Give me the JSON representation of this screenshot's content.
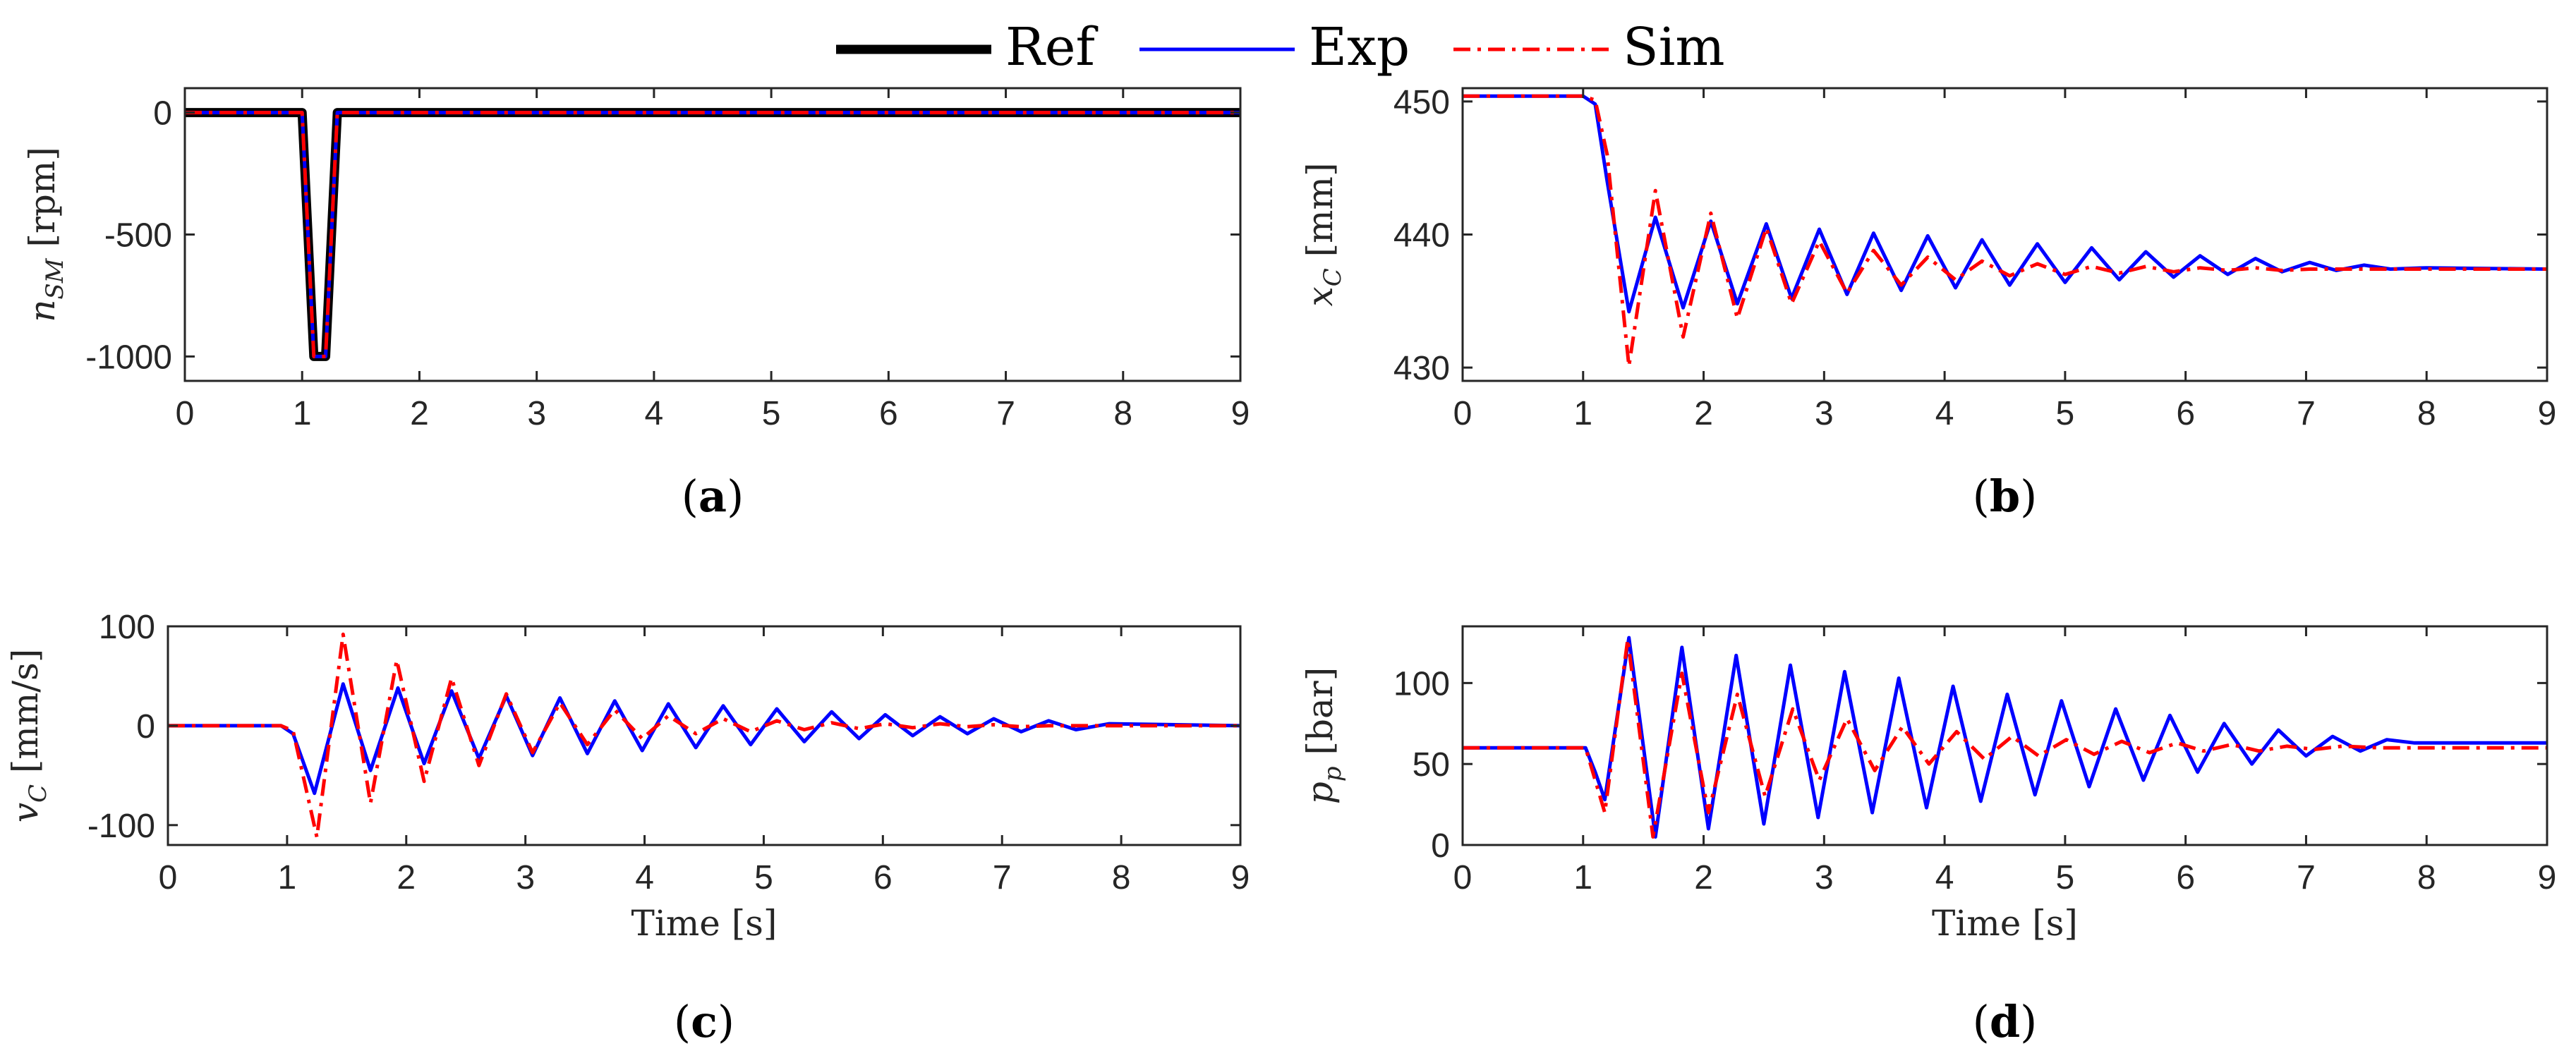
{
  "legend": {
    "entries": [
      {
        "name": "Ref",
        "color": "#000000",
        "style": "solid"
      },
      {
        "name": "Exp",
        "color": "#0000ff",
        "style": "solid"
      },
      {
        "name": "Sim",
        "color": "#ff0000",
        "style": "dashdot"
      }
    ]
  },
  "chart_data": [
    {
      "type": "line",
      "panel": "(a)",
      "ylabel": "n_SM [rpm]",
      "ylabel_main": "n",
      "ylabel_sub": "SM",
      "ylabel_unit": " [rpm]",
      "xlabel": "",
      "xlim": [
        0,
        9
      ],
      "ylim": [
        -1100,
        100
      ],
      "xticks": [
        "0",
        "1",
        "2",
        "3",
        "4",
        "5",
        "6",
        "7",
        "8",
        "9"
      ],
      "yticks": [
        0,
        -500,
        -1000
      ],
      "series": [
        {
          "name": "Ref",
          "x": [
            0,
            1.0,
            1.1,
            1.2,
            1.3,
            9
          ],
          "y": [
            0,
            0,
            -1000,
            -1000,
            0,
            0
          ]
        },
        {
          "name": "Exp",
          "x": [
            0,
            1.0,
            1.1,
            1.2,
            1.3,
            9
          ],
          "y": [
            0,
            0,
            -1000,
            -1000,
            0,
            0
          ]
        },
        {
          "name": "Sim",
          "x": [
            0,
            1.0,
            1.1,
            1.2,
            1.3,
            9
          ],
          "y": [
            0,
            0,
            -1000,
            -1000,
            0,
            0
          ]
        }
      ]
    },
    {
      "type": "line",
      "panel": "(b)",
      "ylabel": "x_C [mm]",
      "ylabel_main": "x",
      "ylabel_sub": "C",
      "ylabel_unit": " [mm]",
      "xlabel": "",
      "xlim": [
        0,
        9
      ],
      "ylim": [
        429,
        451
      ],
      "xticks": [
        "0",
        "1",
        "2",
        "3",
        "4",
        "5",
        "6",
        "7",
        "8",
        "9"
      ],
      "yticks": [
        430,
        440,
        450
      ],
      "series": [
        {
          "name": "Exp",
          "x": [
            0,
            1.0,
            1.1,
            1.2,
            1.38,
            1.6,
            1.83,
            2.06,
            2.28,
            2.52,
            2.73,
            2.96,
            3.19,
            3.41,
            3.64,
            3.86,
            4.09,
            4.31,
            4.54,
            4.77,
            5.0,
            5.22,
            5.45,
            5.67,
            5.9,
            6.12,
            6.35,
            6.58,
            6.8,
            7.03,
            7.25,
            7.48,
            7.7,
            8.0,
            9
          ],
          "y": [
            450.4,
            450.4,
            449.8,
            444.0,
            434.2,
            441.3,
            434.5,
            441.0,
            434.8,
            440.8,
            435.2,
            440.4,
            435.5,
            440.1,
            435.8,
            439.9,
            436.0,
            439.6,
            436.2,
            439.3,
            436.4,
            439.0,
            436.6,
            438.7,
            436.8,
            438.4,
            437.0,
            438.2,
            437.2,
            437.9,
            437.3,
            437.7,
            437.4,
            437.5,
            437.4
          ]
        },
        {
          "name": "Sim",
          "x": [
            0,
            1.0,
            1.1,
            1.2,
            1.38,
            1.6,
            1.83,
            2.06,
            2.28,
            2.52,
            2.73,
            2.96,
            3.19,
            3.41,
            3.64,
            3.86,
            4.09,
            4.31,
            4.54,
            4.77,
            5.0,
            5.22,
            5.45,
            5.67,
            5.9,
            6.12,
            6.35,
            6.58,
            6.8,
            7.03,
            7.25,
            7.48,
            7.7,
            8.0,
            9
          ],
          "y": [
            450.4,
            450.4,
            450.1,
            446.0,
            430.1,
            443.3,
            432.3,
            441.6,
            433.7,
            440.5,
            434.8,
            439.5,
            435.6,
            438.8,
            436.2,
            438.3,
            436.6,
            438.0,
            436.9,
            437.8,
            437.0,
            437.6,
            437.1,
            437.6,
            437.2,
            437.5,
            437.3,
            437.5,
            437.3,
            437.4,
            437.4,
            437.4,
            437.4,
            437.4,
            437.4
          ]
        }
      ]
    },
    {
      "type": "line",
      "panel": "(c)",
      "ylabel": "v_C [mm/s]",
      "ylabel_main": "v",
      "ylabel_sub": "C",
      "ylabel_unit": " [mm/s]",
      "xlabel": "Time [s]",
      "xlim": [
        0,
        9
      ],
      "ylim": [
        -120,
        100
      ],
      "xticks": [
        "0",
        "1",
        "2",
        "3",
        "4",
        "5",
        "6",
        "7",
        "8",
        "9"
      ],
      "yticks": [
        100,
        0,
        -100
      ],
      "series": [
        {
          "name": "Exp",
          "x": [
            0,
            0.95,
            1.05,
            1.23,
            1.47,
            1.7,
            1.93,
            2.15,
            2.38,
            2.61,
            2.84,
            3.06,
            3.29,
            3.52,
            3.75,
            3.98,
            4.2,
            4.43,
            4.66,
            4.89,
            5.11,
            5.34,
            5.57,
            5.8,
            6.02,
            6.25,
            6.48,
            6.71,
            6.93,
            7.16,
            7.39,
            7.62,
            7.9,
            9
          ],
          "y": [
            0,
            0,
            -8,
            -68,
            42,
            -45,
            38,
            -38,
            35,
            -33,
            30,
            -30,
            28,
            -28,
            25,
            -25,
            22,
            -22,
            20,
            -19,
            17,
            -16,
            14,
            -13,
            11,
            -10,
            9,
            -8,
            7,
            -6,
            5,
            -4,
            2,
            0
          ]
        },
        {
          "name": "Sim",
          "x": [
            0,
            0.95,
            1.05,
            1.25,
            1.47,
            1.7,
            1.92,
            2.15,
            2.38,
            2.61,
            2.84,
            3.06,
            3.29,
            3.52,
            3.75,
            3.98,
            4.2,
            4.43,
            4.66,
            4.89,
            5.11,
            5.34,
            5.57,
            5.8,
            6.02,
            6.25,
            6.48,
            6.71,
            6.93,
            7.16,
            7.39,
            7.62,
            7.9,
            9
          ],
          "y": [
            0,
            0,
            -5,
            -112,
            92,
            -78,
            66,
            -56,
            48,
            -40,
            32,
            -27,
            23,
            -19,
            16,
            -13,
            10,
            -8,
            7,
            -6,
            5,
            -4,
            3,
            -3,
            2,
            -2,
            2,
            -1,
            1,
            -1,
            0,
            0,
            0,
            0
          ]
        }
      ]
    },
    {
      "type": "line",
      "panel": "(d)",
      "ylabel": "p_p [bar]",
      "ylabel_main": "p",
      "ylabel_sub": "p",
      "ylabel_unit": " [bar]",
      "xlabel": "Time [s]",
      "xlim": [
        0,
        9
      ],
      "ylim": [
        0,
        135
      ],
      "xticks": [
        "0",
        "1",
        "2",
        "3",
        "4",
        "5",
        "6",
        "7",
        "8",
        "9"
      ],
      "yticks": [
        0,
        50,
        100
      ],
      "series": [
        {
          "name": "Exp",
          "x": [
            0,
            1.02,
            1.1,
            1.18,
            1.38,
            1.6,
            1.82,
            2.04,
            2.27,
            2.5,
            2.72,
            2.95,
            3.17,
            3.4,
            3.62,
            3.85,
            4.07,
            4.3,
            4.52,
            4.75,
            4.97,
            5.2,
            5.42,
            5.65,
            5.87,
            6.1,
            6.32,
            6.55,
            6.77,
            7.0,
            7.22,
            7.45,
            7.67,
            7.9,
            8.2,
            9
          ],
          "y": [
            60,
            60,
            45,
            28,
            128,
            5,
            122,
            10,
            117,
            13,
            111,
            17,
            107,
            20,
            103,
            23,
            98,
            27,
            93,
            31,
            89,
            36,
            84,
            40,
            80,
            45,
            75,
            50,
            71,
            55,
            67,
            58,
            65,
            63,
            63,
            63
          ]
        },
        {
          "name": "Sim",
          "x": [
            0,
            1.02,
            1.1,
            1.18,
            1.37,
            1.58,
            1.82,
            2.04,
            2.28,
            2.51,
            2.74,
            2.96,
            3.19,
            3.42,
            3.65,
            3.87,
            4.1,
            4.33,
            4.56,
            4.78,
            5.01,
            5.24,
            5.47,
            5.7,
            5.93,
            6.15,
            6.38,
            6.61,
            6.84,
            7.07,
            7.3,
            7.6,
            8.0,
            8.5,
            9
          ],
          "y": [
            60,
            60,
            40,
            20,
            127,
            5,
            106,
            20,
            93,
            30,
            84,
            40,
            78,
            46,
            73,
            50,
            70,
            53,
            67,
            55,
            65,
            56,
            64,
            57,
            63,
            58,
            62,
            58,
            61,
            59,
            61,
            60,
            60,
            60,
            60
          ]
        }
      ]
    }
  ]
}
